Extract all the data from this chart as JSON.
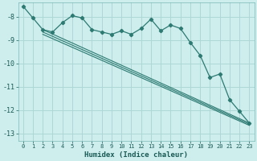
{
  "background_color": "#cdeeed",
  "grid_color": "#aed8d5",
  "line_color": "#2d7a72",
  "xlabel": "Humidex (Indice chaleur)",
  "xlim": [
    -0.5,
    23.5
  ],
  "ylim": [
    -13.3,
    -7.4
  ],
  "xticks": [
    0,
    1,
    2,
    3,
    4,
    5,
    6,
    7,
    8,
    9,
    10,
    11,
    12,
    13,
    14,
    15,
    16,
    17,
    18,
    19,
    20,
    21,
    22,
    23
  ],
  "yticks": [
    -13,
    -12,
    -11,
    -10,
    -9,
    -8
  ],
  "series_wavy": {
    "x": [
      0,
      1,
      2,
      3,
      4,
      5,
      6,
      7,
      8,
      9,
      10,
      11,
      12,
      13,
      14,
      15,
      16,
      17,
      18,
      19,
      20,
      21,
      22,
      23
    ],
    "y": [
      -7.55,
      -8.05,
      -8.55,
      -8.65,
      -8.25,
      -7.95,
      -8.05,
      -8.55,
      -8.65,
      -8.75,
      -8.6,
      -8.75,
      -8.5,
      -8.1,
      -8.6,
      -8.35,
      -8.5,
      -9.1,
      -9.65,
      -10.6,
      -10.45,
      -11.55,
      -12.05,
      -12.55
    ]
  },
  "series_lines": [
    {
      "x": [
        2,
        23
      ],
      "y": [
        -8.55,
        -12.55
      ]
    },
    {
      "x": [
        2,
        23
      ],
      "y": [
        -8.65,
        -12.6
      ]
    },
    {
      "x": [
        2,
        23
      ],
      "y": [
        -8.75,
        -12.65
      ]
    }
  ]
}
